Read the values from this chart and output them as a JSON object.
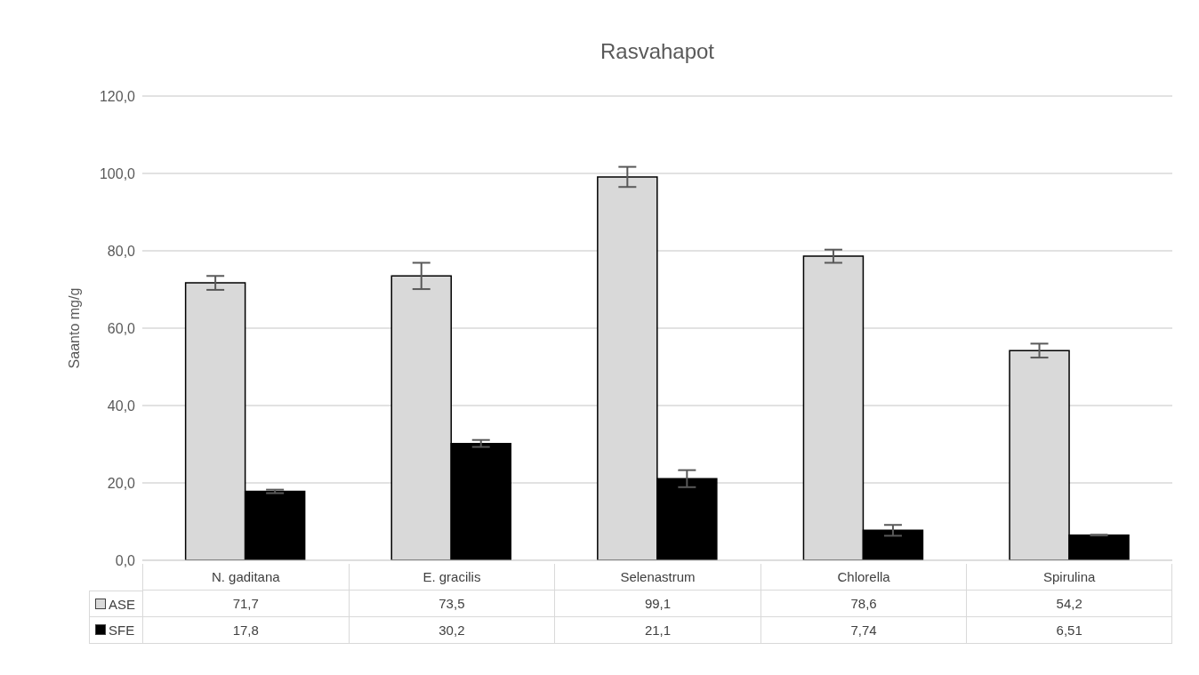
{
  "chart_data": {
    "type": "bar",
    "title": "Rasvahapot",
    "ylabel": "Saanto mg/g",
    "categories": [
      "N. gaditana",
      "E. gracilis",
      "Selenastrum",
      "Chlorella",
      "Spirulina"
    ],
    "series": [
      {
        "name": "ASE",
        "color": "#d9d9d9",
        "values": [
          71.7,
          73.5,
          99.1,
          78.6,
          54.2
        ],
        "errors": [
          1.8,
          3.4,
          2.6,
          1.7,
          1.8
        ],
        "value_labels": [
          "71,7",
          "73,5",
          "99,1",
          "78,6",
          "54,2"
        ]
      },
      {
        "name": "SFE",
        "color": "#000000",
        "values": [
          17.8,
          30.2,
          21.1,
          7.74,
          6.51
        ],
        "errors": [
          0.45,
          0.9,
          2.2,
          1.4,
          0.1
        ],
        "value_labels": [
          "17,8",
          "30,2",
          "21,1",
          "7,74",
          "6,51"
        ]
      }
    ],
    "ylim": [
      0,
      120
    ],
    "yticks": [
      {
        "value": 0,
        "label": "0,0"
      },
      {
        "value": 20,
        "label": "20,0"
      },
      {
        "value": 40,
        "label": "40,0"
      },
      {
        "value": 60,
        "label": "60,0"
      },
      {
        "value": 80,
        "label": "80,0"
      },
      {
        "value": 100,
        "label": "100,0"
      },
      {
        "value": 120,
        "label": "120,0"
      }
    ],
    "grid": "y",
    "legend": "bottom"
  }
}
